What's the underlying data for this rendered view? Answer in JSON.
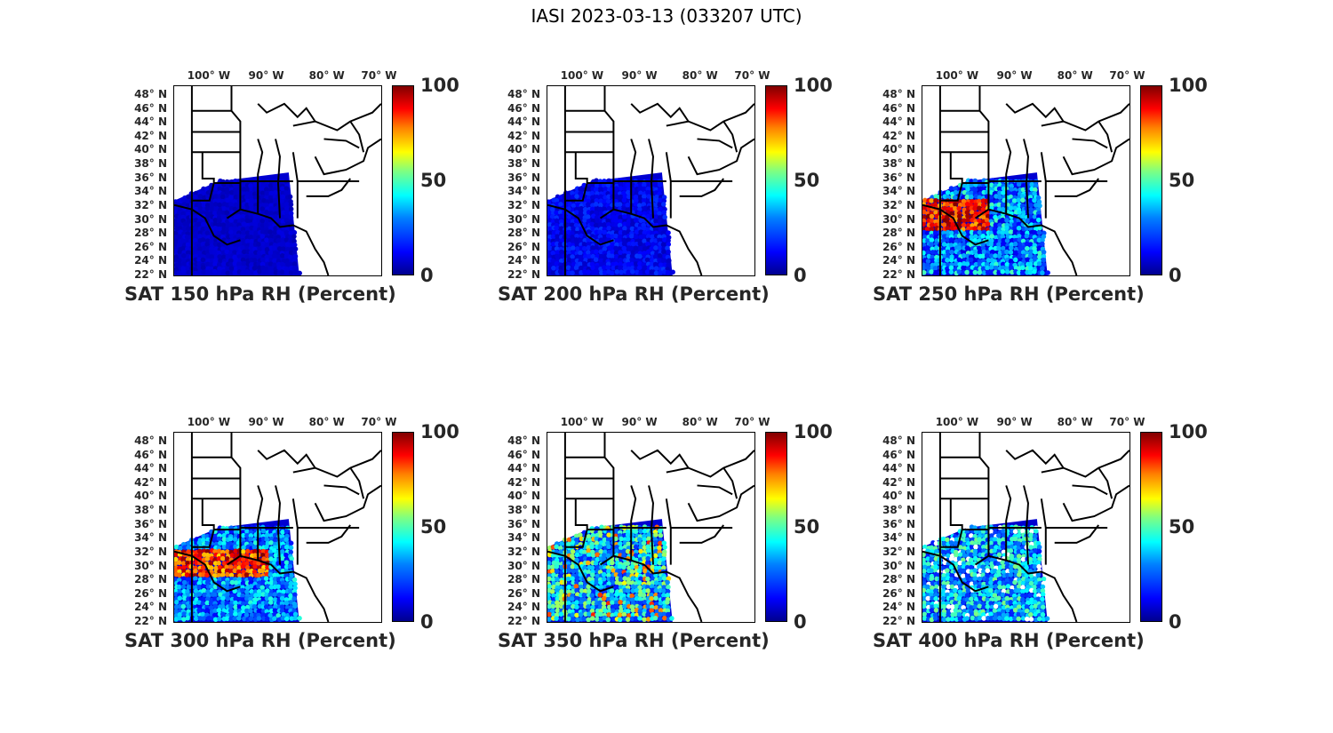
{
  "figure_title": "IASI 2023-03-13 (033207 UTC)",
  "lon_labels": [
    "100° W",
    "90° W",
    "80° W",
    "70° W"
  ],
  "lat_labels": [
    "48° N",
    "46° N",
    "44° N",
    "42° N",
    "40° N",
    "38° N",
    "36° N",
    "34° N",
    "32° N",
    "30° N",
    "28° N",
    "26° N",
    "24° N",
    "22° N"
  ],
  "colorbar": {
    "min_label": "0",
    "mid_label": "50",
    "max_label": "100",
    "colormap": "jet"
  },
  "colors": {
    "low": "#0000a8",
    "mid": "#80ff80",
    "high": "#a00000"
  },
  "panels": [
    {
      "title": "SAT 150 hPa RH (Percent)",
      "level_hpa": 150,
      "typical_rh": "low (0-15)"
    },
    {
      "title": "SAT 200 hPa RH (Percent)",
      "level_hpa": 200,
      "typical_rh": "low (0-20)"
    },
    {
      "title": "SAT 250 hPa RH (Percent)",
      "level_hpa": 250,
      "typical_rh": "mixed, high (80-100) over Texas/Louisiana"
    },
    {
      "title": "SAT 300 hPa RH (Percent)",
      "level_hpa": 300,
      "typical_rh": "mixed, high (80-100) over Texas/Louisiana"
    },
    {
      "title": "SAT 350 hPa RH (Percent)",
      "level_hpa": 350,
      "typical_rh": "moderate (20-70)"
    },
    {
      "title": "SAT 400 hPa RH (Percent)",
      "level_hpa": 400,
      "typical_rh": "moderate (20-50)"
    }
  ]
}
